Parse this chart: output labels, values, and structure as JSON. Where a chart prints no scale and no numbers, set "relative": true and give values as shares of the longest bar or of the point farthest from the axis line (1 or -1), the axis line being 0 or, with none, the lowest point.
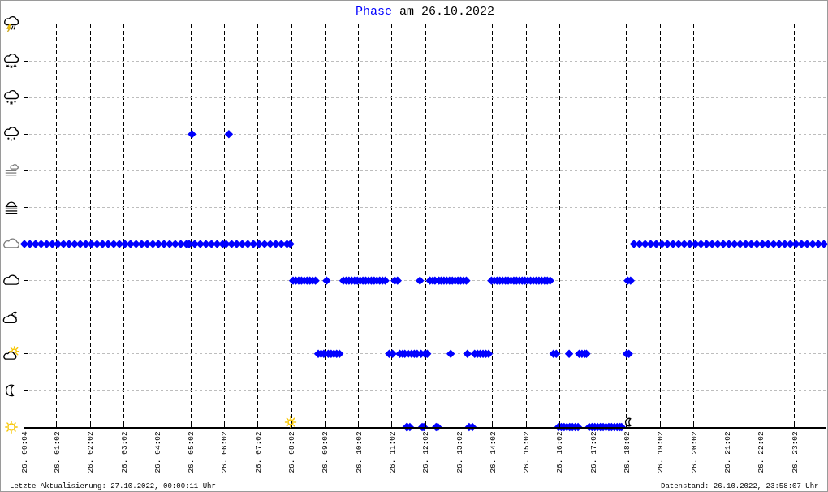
{
  "chart_data": {
    "type": "scatter",
    "title": "am 26.10.2022",
    "annotations": [
      "Letzte Aktualisierung: 27.10.2022, 00:00:11 Uhr",
      "Datenstand: 26.10.2022, 23:58:07 Uhr"
    ],
    "marker": "diamond",
    "grid": true,
    "relative": true,
    "xlim": [
      "2022-10-26T00:04",
      "2022-10-26T23:58"
    ],
    "xticks": [
      {
        "value": "2022-10-26T00:04",
        "label": "26. 00:04"
      },
      {
        "value": "2022-10-26T01:02",
        "label": "26. 01:02"
      },
      {
        "value": "2022-10-26T02:02",
        "label": "26. 02:02"
      },
      {
        "value": "2022-10-26T03:02",
        "label": "26. 03:02"
      },
      {
        "value": "2022-10-26T04:02",
        "label": "26. 04:02"
      },
      {
        "value": "2022-10-26T05:02",
        "label": "26. 05:02"
      },
      {
        "value": "2022-10-26T06:02",
        "label": "26. 06:02"
      },
      {
        "value": "2022-10-26T07:02",
        "label": "26. 07:02"
      },
      {
        "value": "2022-10-26T08:02",
        "label": "26. 08:02"
      },
      {
        "value": "2022-10-26T09:02",
        "label": "26. 09:02"
      },
      {
        "value": "2022-10-26T10:02",
        "label": "26. 10:02"
      },
      {
        "value": "2022-10-26T11:02",
        "label": "26. 11:02"
      },
      {
        "value": "2022-10-26T12:02",
        "label": "26. 12:02"
      },
      {
        "value": "2022-10-26T13:02",
        "label": "26. 13:02"
      },
      {
        "value": "2022-10-26T14:02",
        "label": "26. 14:02"
      },
      {
        "value": "2022-10-26T15:02",
        "label": "26. 15:02"
      },
      {
        "value": "2022-10-26T16:02",
        "label": "26. 16:02"
      },
      {
        "value": "2022-10-26T17:02",
        "label": "26. 17:02"
      },
      {
        "value": "2022-10-26T18:02",
        "label": "26. 18:02"
      },
      {
        "value": "2022-10-26T19:02",
        "label": "26. 19:02"
      },
      {
        "value": "2022-10-26T20:02",
        "label": "26. 20:02"
      },
      {
        "value": "2022-10-26T21:02",
        "label": "26. 21:02"
      },
      {
        "value": "2022-10-26T22:02",
        "label": "26. 22:02"
      },
      {
        "value": "2022-10-26T23:02",
        "label": "26. 23:02"
      }
    ],
    "x": [
      "2022-10-26T00:04",
      "2022-10-26T00:14",
      "2022-10-26T00:24",
      "2022-10-26T00:34",
      "2022-10-26T00:44",
      "2022-10-26T00:54",
      "2022-10-26T01:04",
      "2022-10-26T01:14",
      "2022-10-26T01:24",
      "2022-10-26T01:34",
      "2022-10-26T01:44",
      "2022-10-26T01:54",
      "2022-10-26T02:04",
      "2022-10-26T02:14",
      "2022-10-26T02:24",
      "2022-10-26T02:34",
      "2022-10-26T02:44",
      "2022-10-26T02:54",
      "2022-10-26T03:04",
      "2022-10-26T03:14",
      "2022-10-26T03:24",
      "2022-10-26T03:34",
      "2022-10-26T03:44",
      "2022-10-26T03:54",
      "2022-10-26T04:04",
      "2022-10-26T04:14",
      "2022-10-26T04:24",
      "2022-10-26T04:34",
      "2022-10-26T04:44",
      "2022-10-26T04:54",
      "2022-10-26T04:59",
      "2022-10-26T05:04",
      "2022-10-26T05:09",
      "2022-10-26T05:19",
      "2022-10-26T05:29",
      "2022-10-26T05:39",
      "2022-10-26T05:49",
      "2022-10-26T05:59",
      "2022-10-26T06:05",
      "2022-10-26T06:10",
      "2022-10-26T06:15",
      "2022-10-26T06:24",
      "2022-10-26T06:34",
      "2022-10-26T06:44",
      "2022-10-26T06:54",
      "2022-10-26T07:04",
      "2022-10-26T07:14",
      "2022-10-26T07:24",
      "2022-10-26T07:34",
      "2022-10-26T07:44",
      "2022-10-26T07:54",
      "2022-10-26T08:00",
      "2022-10-26T08:05",
      "2022-10-26T08:10",
      "2022-10-26T08:15",
      "2022-10-26T08:20",
      "2022-10-26T08:25",
      "2022-10-26T08:30",
      "2022-10-26T08:35",
      "2022-10-26T08:40",
      "2022-10-26T08:45",
      "2022-10-26T08:50",
      "2022-10-26T08:55",
      "2022-10-26T09:00",
      "2022-10-26T09:05",
      "2022-10-26T09:08",
      "2022-10-26T09:13",
      "2022-10-26T09:18",
      "2022-10-26T09:23",
      "2022-10-26T09:28",
      "2022-10-26T09:35",
      "2022-10-26T09:40",
      "2022-10-26T09:45",
      "2022-10-26T09:50",
      "2022-10-26T09:55",
      "2022-10-26T10:00",
      "2022-10-26T10:05",
      "2022-10-26T10:10",
      "2022-10-26T10:15",
      "2022-10-26T10:20",
      "2022-10-26T10:25",
      "2022-10-26T10:30",
      "2022-10-26T10:35",
      "2022-10-26T10:40",
      "2022-10-26T10:45",
      "2022-10-26T10:50",
      "2022-10-26T10:57",
      "2022-10-26T11:03",
      "2022-10-26T11:07",
      "2022-10-26T11:12",
      "2022-10-26T11:16",
      "2022-10-26T11:21",
      "2022-10-26T11:25",
      "2022-10-26T11:28",
      "2022-10-26T11:31",
      "2022-10-26T11:34",
      "2022-10-26T11:37",
      "2022-10-26T11:42",
      "2022-10-26T11:47",
      "2022-10-26T11:52",
      "2022-10-26T11:54",
      "2022-10-26T11:56",
      "2022-10-26T11:59",
      "2022-10-26T12:01",
      "2022-10-26T12:05",
      "2022-10-26T12:10",
      "2022-10-26T12:15",
      "2022-10-26T12:19",
      "2022-10-26T12:21",
      "2022-10-26T12:24",
      "2022-10-26T12:26",
      "2022-10-26T12:30",
      "2022-10-26T12:35",
      "2022-10-26T12:40",
      "2022-10-26T12:45",
      "2022-10-26T12:47",
      "2022-10-26T12:50",
      "2022-10-26T12:55",
      "2022-10-26T13:00",
      "2022-10-26T13:05",
      "2022-10-26T13:10",
      "2022-10-26T13:15",
      "2022-10-26T13:17",
      "2022-10-26T13:20",
      "2022-10-26T13:26",
      "2022-10-26T13:30",
      "2022-10-26T13:35",
      "2022-10-26T13:40",
      "2022-10-26T13:45",
      "2022-10-26T13:50",
      "2022-10-26T13:55",
      "2022-10-26T14:00",
      "2022-10-26T14:05",
      "2022-10-26T14:10",
      "2022-10-26T14:15",
      "2022-10-26T14:20",
      "2022-10-26T14:25",
      "2022-10-26T14:30",
      "2022-10-26T14:35",
      "2022-10-26T14:40",
      "2022-10-26T14:45",
      "2022-10-26T14:50",
      "2022-10-26T14:55",
      "2022-10-26T15:00",
      "2022-10-26T15:05",
      "2022-10-26T15:10",
      "2022-10-26T15:15",
      "2022-10-26T15:20",
      "2022-10-26T15:25",
      "2022-10-26T15:30",
      "2022-10-26T15:35",
      "2022-10-26T15:40",
      "2022-10-26T15:45",
      "2022-10-26T15:51",
      "2022-10-26T15:56",
      "2022-10-26T16:00",
      "2022-10-26T16:05",
      "2022-10-26T16:10",
      "2022-10-26T16:15",
      "2022-10-26T16:19",
      "2022-10-26T16:20",
      "2022-10-26T16:25",
      "2022-10-26T16:30",
      "2022-10-26T16:35",
      "2022-10-26T16:37",
      "2022-10-26T16:42",
      "2022-10-26T16:47",
      "2022-10-26T16:50",
      "2022-10-26T16:55",
      "2022-10-26T17:00",
      "2022-10-26T17:05",
      "2022-10-26T17:10",
      "2022-10-26T17:15",
      "2022-10-26T17:20",
      "2022-10-26T17:25",
      "2022-10-26T17:30",
      "2022-10-26T17:35",
      "2022-10-26T17:40",
      "2022-10-26T17:45",
      "2022-10-26T17:50",
      "2022-10-26T17:53",
      "2022-10-26T18:02",
      "2022-10-26T18:04",
      "2022-10-26T18:06",
      "2022-10-26T18:09",
      "2022-10-26T18:15",
      "2022-10-26T18:25",
      "2022-10-26T18:35",
      "2022-10-26T18:45",
      "2022-10-26T18:55",
      "2022-10-26T19:05",
      "2022-10-26T19:15",
      "2022-10-26T19:25",
      "2022-10-26T19:35",
      "2022-10-26T19:45",
      "2022-10-26T19:55",
      "2022-10-26T20:05",
      "2022-10-26T20:15",
      "2022-10-26T20:25",
      "2022-10-26T20:35",
      "2022-10-26T20:45",
      "2022-10-26T20:55",
      "2022-10-26T21:05",
      "2022-10-26T21:15",
      "2022-10-26T21:25",
      "2022-10-26T21:35",
      "2022-10-26T21:45",
      "2022-10-26T21:55",
      "2022-10-26T22:05",
      "2022-10-26T22:15",
      "2022-10-26T22:25",
      "2022-10-26T22:35",
      "2022-10-26T22:45",
      "2022-10-26T22:55",
      "2022-10-26T23:05",
      "2022-10-26T23:15",
      "2022-10-26T23:25",
      "2022-10-26T23:35",
      "2022-10-26T23:45",
      "2022-10-26T23:55"
    ],
    "series": [
      {
        "name": "Phase",
        "color": "#0000ff",
        "values": [
          0.625,
          0.625,
          0.625,
          0.625,
          0.625,
          0.625,
          0.625,
          0.625,
          0.625,
          0.625,
          0.625,
          0.625,
          0.625,
          0.625,
          0.625,
          0.625,
          0.625,
          0.625,
          0.625,
          0.625,
          0.625,
          0.625,
          0.625,
          0.625,
          0.625,
          0.625,
          0.625,
          0.625,
          0.625,
          0.625,
          0.625,
          1,
          0.625,
          0.625,
          0.625,
          0.625,
          0.625,
          0.625,
          0.625,
          1,
          0.625,
          0.625,
          0.625,
          0.625,
          0.625,
          0.625,
          0.625,
          0.625,
          0.625,
          0.625,
          0.625,
          0.625,
          0.5,
          0.5,
          0.5,
          0.5,
          0.5,
          0.5,
          0.5,
          0.5,
          0.5,
          0.25,
          0.25,
          0.25,
          0.5,
          0.25,
          0.25,
          0.25,
          0.25,
          0.25,
          0.5,
          0.5,
          0.5,
          0.5,
          0.5,
          0.5,
          0.5,
          0.5,
          0.5,
          0.5,
          0.5,
          0.5,
          0.5,
          0.5,
          0.5,
          0.5,
          0.25,
          0.25,
          0.5,
          0.5,
          0.25,
          0.25,
          0.25,
          0,
          0.25,
          0,
          0.25,
          0.25,
          0.25,
          0.5,
          0.25,
          0,
          0,
          0.25,
          0.25,
          0.5,
          0.5,
          0.5,
          0,
          0,
          0.5,
          0.5,
          0.5,
          0.5,
          0.5,
          0.25,
          0.5,
          0.5,
          0.5,
          0.5,
          0.5,
          0.5,
          0.25,
          0,
          0,
          0.25,
          0.25,
          0.25,
          0.25,
          0.25,
          0.25,
          0.5,
          0.5,
          0.5,
          0.5,
          0.5,
          0.5,
          0.5,
          0.5,
          0.5,
          0.5,
          0.5,
          0.5,
          0.5,
          0.5,
          0.5,
          0.5,
          0.5,
          0.5,
          0.5,
          0.5,
          0.5,
          0.5,
          0.25,
          0.25,
          0,
          0,
          0,
          0,
          0.25,
          0,
          0,
          0,
          0,
          0.25,
          0.25,
          0.25,
          0.25,
          0,
          0,
          0,
          0,
          0,
          0,
          0,
          0,
          0,
          0,
          0,
          0,
          0,
          0.25,
          0.5,
          0.25,
          0.5,
          0.625,
          0.625,
          0.625,
          0.625,
          0.625,
          0.625,
          0.625,
          0.625,
          0.625,
          0.625,
          0.625,
          0.625,
          0.625,
          0.625,
          0.625,
          0.625,
          0.625,
          0.625,
          0.625,
          0.625,
          0.625,
          0.625,
          0.625,
          0.625,
          0.625,
          0.625,
          0.625,
          0.625,
          0.625,
          0.625,
          0.625,
          0.625,
          0.625,
          0.625,
          0.625
        ]
      }
    ]
  }
}
